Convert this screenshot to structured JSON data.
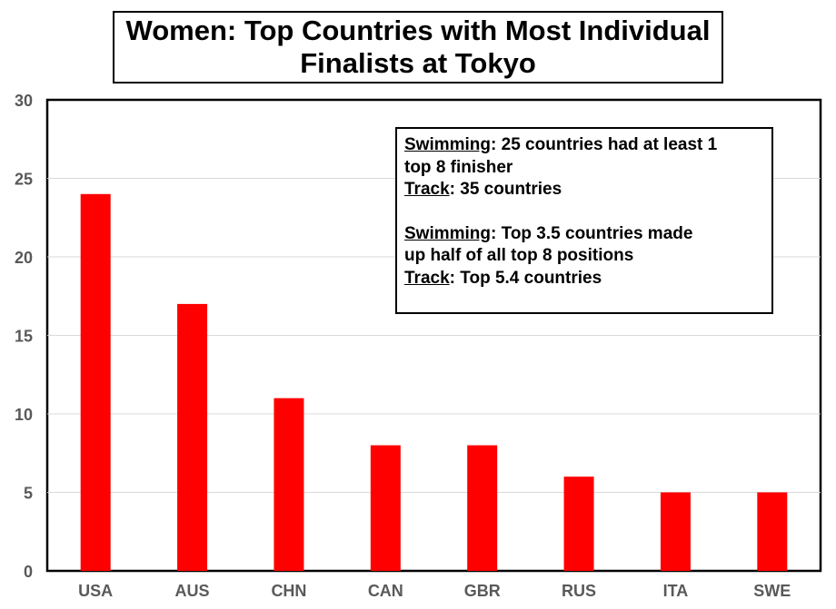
{
  "chart_data": {
    "type": "bar",
    "title": "Women: Top Countries with Most Individual Finalists at Tokyo",
    "title_lines": [
      "Women: Top Countries with Most Individual",
      "Finalists at Tokyo"
    ],
    "categories": [
      "USA",
      "AUS",
      "CHN",
      "CAN",
      "GBR",
      "RUS",
      "ITA",
      "SWE"
    ],
    "values": [
      24,
      17,
      11,
      8,
      8,
      6,
      5,
      5
    ],
    "ylim": [
      0,
      30
    ],
    "yticks": [
      0,
      5,
      10,
      15,
      20,
      25,
      30
    ],
    "xlabel": "",
    "ylabel": "",
    "grid": true,
    "bar_color": "#ff0000",
    "annotation": {
      "para1": {
        "label": "Swimming",
        "text": ":  25 countries had at least 1",
        "cont": "top 8 finisher",
        "label2": "Track",
        "text2": ": 35 countries"
      },
      "para2": {
        "label": "Swimming",
        "text": ":  Top 3.5 countries made",
        "cont": "up half of all top 8 positions",
        "label2": "Track",
        "text2": ": Top 5.4 countries"
      }
    }
  }
}
